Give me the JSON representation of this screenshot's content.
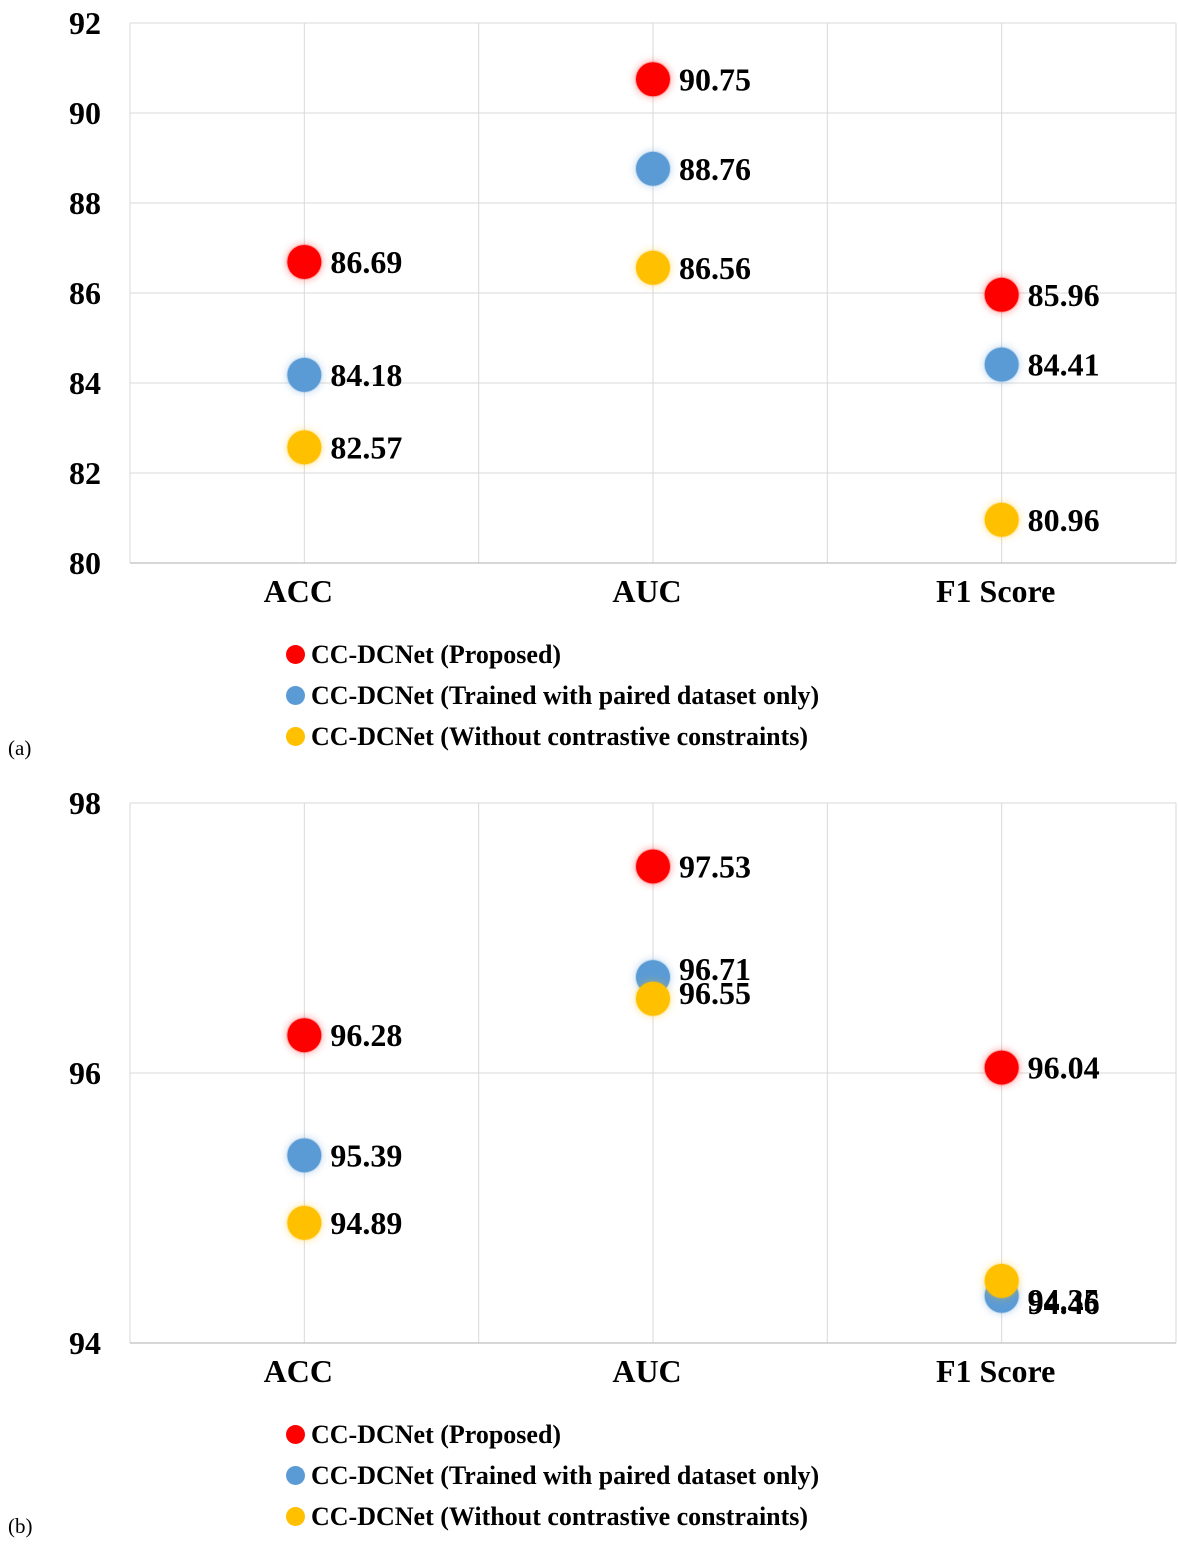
{
  "legend": {
    "proposed": "CC-DCNet (Proposed)",
    "paired": "CC-DCNet (Trained with paired dataset only)",
    "nocontrast": "CC-DCNet (Without contrastive constraints)"
  },
  "panel_labels": [
    "(a)",
    "(b)"
  ],
  "colors": {
    "proposed": "#ff0000",
    "paired": "#5b9bd5",
    "nocontrast": "#ffc000",
    "grid": "#d9d9d9"
  },
  "chart_data": [
    {
      "type": "scatter",
      "categories": [
        "ACC",
        "AUC",
        "F1 Score"
      ],
      "ylim": [
        80,
        92
      ],
      "yticks": [
        80,
        82,
        84,
        86,
        88,
        90,
        92
      ],
      "grid": true,
      "legend_position": "bottom",
      "series": [
        {
          "name": "CC-DCNet (Proposed)",
          "color": "#ff0000",
          "values": [
            86.69,
            90.75,
            85.96
          ]
        },
        {
          "name": "CC-DCNet (Trained with paired dataset only)",
          "color": "#5b9bd5",
          "values": [
            84.18,
            88.76,
            84.41
          ]
        },
        {
          "name": "CC-DCNet (Without contrastive constraints)",
          "color": "#ffc000",
          "values": [
            82.57,
            86.56,
            80.96
          ]
        }
      ]
    },
    {
      "type": "scatter",
      "categories": [
        "ACC",
        "AUC",
        "F1 Score"
      ],
      "ylim": [
        94,
        98
      ],
      "yticks": [
        94,
        96,
        98
      ],
      "grid": true,
      "legend_position": "bottom",
      "series": [
        {
          "name": "CC-DCNet (Proposed)",
          "color": "#ff0000",
          "values": [
            96.28,
            97.53,
            96.04
          ]
        },
        {
          "name": "CC-DCNet (Trained with paired dataset only)",
          "color": "#5b9bd5",
          "values": [
            95.39,
            96.71,
            94.35
          ]
        },
        {
          "name": "CC-DCNet (Without contrastive constraints)",
          "color": "#ffc000",
          "values": [
            94.89,
            96.55,
            94.46
          ]
        }
      ]
    }
  ]
}
